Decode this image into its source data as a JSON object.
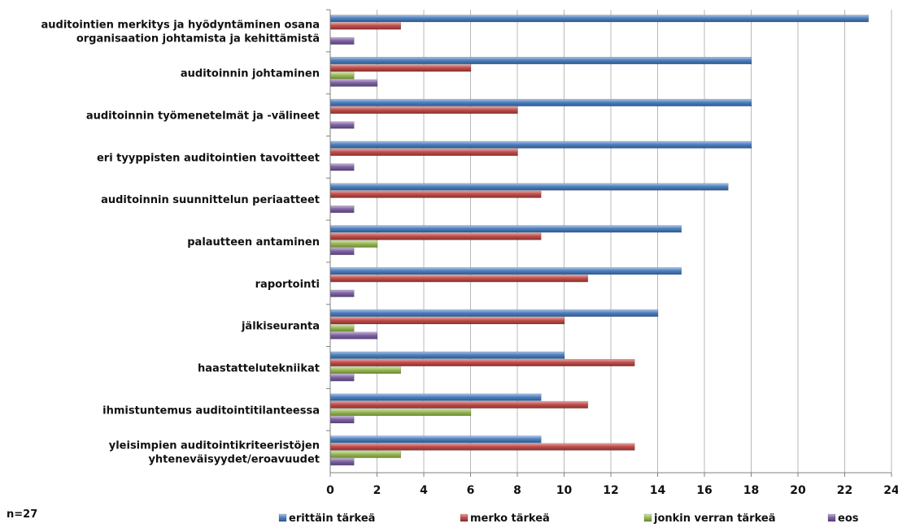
{
  "chart_data": {
    "type": "bar",
    "orientation": "horizontal",
    "categories": [
      [
        "auditointien merkitys ja hyödyntäminen osana",
        "organisaation johtamista ja kehittämistä"
      ],
      [
        "auditoinnin johtaminen"
      ],
      [
        "auditoinnin työmenetelmät ja -välineet"
      ],
      [
        "eri tyyppisten auditointien tavoitteet"
      ],
      [
        "auditoinnin suunnittelun periaatteet"
      ],
      [
        "palautteen antaminen"
      ],
      [
        "raportointi"
      ],
      [
        "jälkiseuranta"
      ],
      [
        "haastattelutekniikat"
      ],
      [
        "ihmistuntemus auditointitilanteessa"
      ],
      [
        "yleisimpien auditointikriteeristöjen",
        "yhteneväisyydet/eroavuudet"
      ]
    ],
    "series": [
      {
        "name": "erittäin tärkeä",
        "color": "#4f81bd",
        "values": [
          23,
          18,
          18,
          18,
          17,
          15,
          15,
          14,
          10,
          9,
          9
        ]
      },
      {
        "name": "merko tärkeä",
        "color": "#c0504d",
        "values": [
          3,
          6,
          8,
          8,
          9,
          9,
          11,
          10,
          13,
          11,
          13
        ]
      },
      {
        "name": "jonkin verran tärkeä",
        "color": "#9bbb59",
        "values": [
          0,
          1,
          0,
          0,
          0,
          2,
          0,
          1,
          3,
          6,
          3
        ]
      },
      {
        "name": "eos",
        "color": "#8064a2",
        "values": [
          1,
          2,
          1,
          1,
          1,
          1,
          1,
          2,
          1,
          1,
          1
        ]
      }
    ],
    "xlim": [
      0,
      24
    ],
    "xticks": [
      0,
      2,
      4,
      6,
      8,
      10,
      12,
      14,
      16,
      18,
      20,
      22,
      24
    ],
    "grid": true,
    "legend_position": "bottom",
    "note": "n=27"
  }
}
